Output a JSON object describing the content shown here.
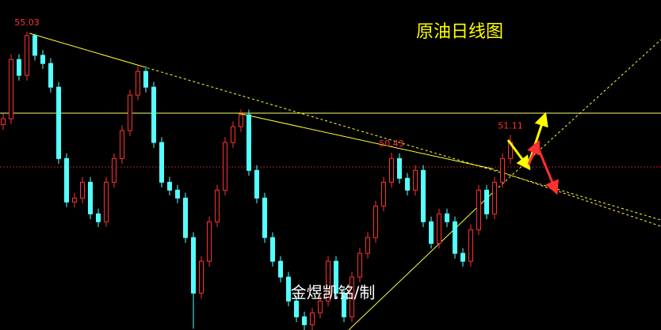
{
  "chart_data": {
    "type": "candlestick",
    "title": "原油日线图",
    "watermark": "金煜凯铭/制",
    "up_color": "#ff3232",
    "down_color": "#54ffff",
    "ylim": [
      43.7,
      56.23
    ],
    "open": [
      51.5,
      51.72,
      53.97,
      53.37,
      54.88,
      54.13,
      53.82,
      52.92,
      50.21,
      48.56,
      48.71,
      49.31,
      48.11,
      47.81,
      49.31,
      50.21,
      51.27,
      52.62,
      53.52,
      52.92,
      50.82,
      49.31,
      49.01,
      48.71,
      47.21,
      45.1,
      46.31,
      47.81,
      49.01,
      50.82,
      51.42,
      51.87,
      49.76,
      48.71,
      47.21,
      46.31,
      45.71,
      44.8,
      44.2,
      43.9,
      44.35,
      44.8,
      46.31,
      45.1,
      44.2,
      45.71,
      46.61,
      47.21,
      48.41,
      49.31,
      50.21,
      49.46,
      49.01,
      49.76,
      47.81,
      46.99,
      48.11,
      47.81,
      46.61,
      46.31,
      47.51,
      49.01,
      48.11,
      49.31,
      50.21
    ],
    "high": [
      51.92,
      54.17,
      54.17,
      55.03,
      54.95,
      54.33,
      54.02,
      53.12,
      50.41,
      48.91,
      49.51,
      49.51,
      48.31,
      49.51,
      50.41,
      51.47,
      52.82,
      53.72,
      53.72,
      53.12,
      51.02,
      49.51,
      49.21,
      48.91,
      47.41,
      46.51,
      48.01,
      49.21,
      51.02,
      51.62,
      52.07,
      52.07,
      49.96,
      48.91,
      47.41,
      46.51,
      45.91,
      45.0,
      44.4,
      44.55,
      45.0,
      46.51,
      46.51,
      45.3,
      45.91,
      46.81,
      47.41,
      48.61,
      49.51,
      50.43,
      50.41,
      49.66,
      49.96,
      49.96,
      48.01,
      48.31,
      48.31,
      48.01,
      46.81,
      47.71,
      49.21,
      49.21,
      49.51,
      50.41,
      51.11
    ],
    "low": [
      51.3,
      51.52,
      53.17,
      53.17,
      53.93,
      53.62,
      52.72,
      50.01,
      48.36,
      48.36,
      48.51,
      47.91,
      47.61,
      47.61,
      49.11,
      50.01,
      51.07,
      52.42,
      52.72,
      50.62,
      49.11,
      48.81,
      48.51,
      47.01,
      43.75,
      44.9,
      46.11,
      47.61,
      48.81,
      50.62,
      51.22,
      49.56,
      48.51,
      47.01,
      46.11,
      45.51,
      44.6,
      44.0,
      43.7,
      43.7,
      44.15,
      44.6,
      44.9,
      44.0,
      44.0,
      45.51,
      46.41,
      47.01,
      48.21,
      49.11,
      49.26,
      48.81,
      48.81,
      47.61,
      46.79,
      46.79,
      47.61,
      46.41,
      46.11,
      46.11,
      47.31,
      47.91,
      47.91,
      49.11,
      50.01
    ],
    "close": [
      51.72,
      53.97,
      53.37,
      54.88,
      54.13,
      53.82,
      52.92,
      50.21,
      48.56,
      48.71,
      49.31,
      48.11,
      47.81,
      49.31,
      50.21,
      51.27,
      52.62,
      53.52,
      52.92,
      50.82,
      49.31,
      49.01,
      48.71,
      47.21,
      45.1,
      46.31,
      47.81,
      49.01,
      50.82,
      51.42,
      51.87,
      49.76,
      48.71,
      47.21,
      46.31,
      45.71,
      44.8,
      44.2,
      43.9,
      44.35,
      44.8,
      46.31,
      45.1,
      44.2,
      45.71,
      46.61,
      47.21,
      48.41,
      49.31,
      50.21,
      49.46,
      49.01,
      49.76,
      47.81,
      46.99,
      48.11,
      47.81,
      46.61,
      46.31,
      47.51,
      49.01,
      48.11,
      49.31,
      50.21,
      50.82
    ]
  }
}
